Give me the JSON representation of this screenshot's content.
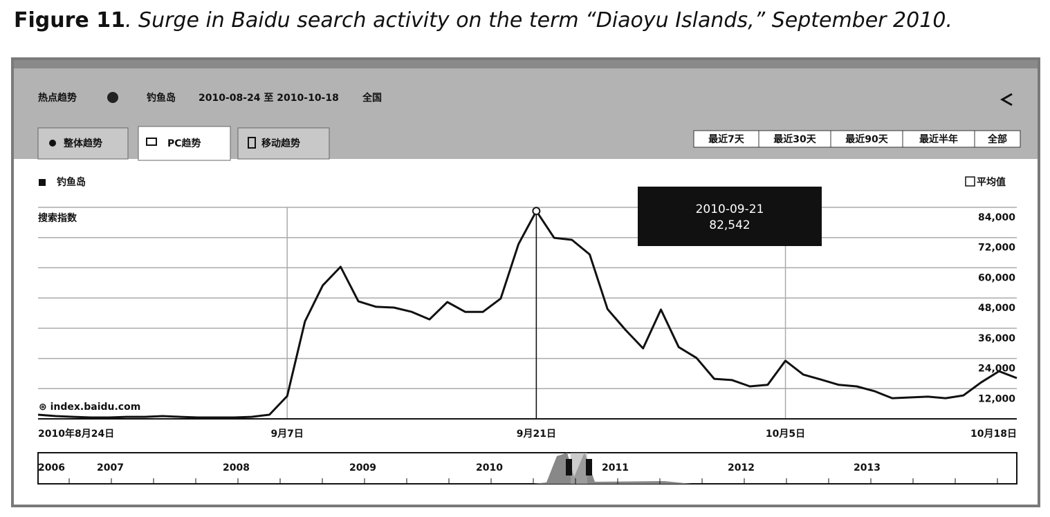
{
  "figure_label": "Figure 11",
  "caption": ". Surge in Baidu search activity on the term “Diaoyu Islands,” September 2010.",
  "header": {
    "title": "热点趋势",
    "keyword": "钓鱼岛",
    "range": "2010-08-24 至 2010-10-18",
    "region": "全国"
  },
  "tabs": [
    "整体趋势",
    "PC趋势",
    "移动趋势"
  ],
  "buttons": [
    "最近7天",
    "最近30天",
    "最近90天",
    "最近半年",
    "全部"
  ],
  "average_toggle": "平均值",
  "watermark": "⊛ index.baidu.com",
  "timeline": {
    "years": [
      "2006",
      "2007",
      "2008",
      "2009",
      "2010",
      "2011",
      "2012",
      "2013"
    ]
  },
  "chart_data": {
    "type": "line",
    "y_label": "搜索指数",
    "tooltip_title": "2010-09-21",
    "categories": [
      "2010年8月24日",
      null,
      null,
      null,
      null,
      null,
      null,
      null,
      null,
      null,
      null,
      null,
      null,
      null,
      "9月7日",
      null,
      null,
      null,
      null,
      null,
      null,
      null,
      null,
      null,
      null,
      null,
      null,
      null,
      "9月21日",
      null,
      null,
      null,
      null,
      null,
      null,
      null,
      null,
      null,
      null,
      null,
      null,
      null,
      "10月5日",
      null,
      null,
      null,
      null,
      null,
      null,
      null,
      null,
      null,
      null,
      null,
      null,
      "10月18日"
    ],
    "series": [
      {
        "name": "钓鱼岛",
        "color": "#111111",
        "values": [
          1650,
          1100,
          800,
          550,
          550,
          800,
          800,
          1100,
          800,
          550,
          550,
          550,
          800,
          1650,
          9060,
          38700,
          53000,
          60400,
          46700,
          44500,
          44200,
          42500,
          39500,
          46400,
          42500,
          42500,
          47800,
          69400,
          82542,
          71900,
          71100,
          65300,
          43600,
          35400,
          28000,
          43400,
          28500,
          24200,
          15900,
          15400,
          12900,
          13500,
          23100,
          17600,
          15600,
          13500,
          12900,
          11000,
          8200,
          8500,
          8800,
          8200,
          9300,
          14500,
          18900,
          16200
        ],
        "value_labels": [
          null,
          null,
          null,
          null,
          null,
          null,
          null,
          null,
          null,
          null,
          null,
          null,
          null,
          null,
          null,
          null,
          null,
          null,
          null,
          null,
          null,
          null,
          null,
          null,
          null,
          null,
          null,
          null,
          "82,542",
          null,
          null,
          null,
          null,
          null,
          null,
          null,
          null,
          null,
          null,
          null,
          null,
          null,
          null,
          null,
          null,
          null,
          null,
          null,
          null,
          null,
          null,
          null,
          null,
          null,
          null,
          null
        ]
      }
    ],
    "ylim": [
      0,
      84000
    ],
    "yticks": [
      {
        "value": 12000,
        "label": "12,000"
      },
      {
        "value": 24000,
        "label": "24,000"
      },
      {
        "value": 36000,
        "label": "36,000"
      },
      {
        "value": 48000,
        "label": "48,000"
      },
      {
        "value": 60000,
        "label": "60,000"
      },
      {
        "value": 72000,
        "label": "72,000"
      },
      {
        "value": 84000,
        "label": "84,000"
      }
    ],
    "grid": true
  }
}
